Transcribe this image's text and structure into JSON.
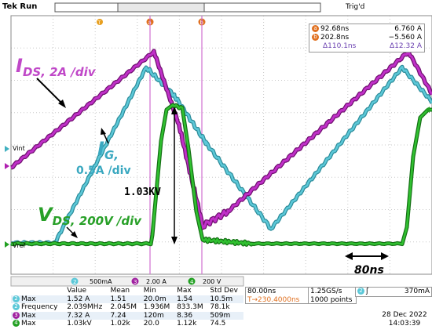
{
  "header": {
    "app_title": "Tek Run",
    "trigger_status": "Trig'd"
  },
  "cursors": {
    "a": {
      "label": "a",
      "time": "92.68ns",
      "value": "6.760 A"
    },
    "b": {
      "label": "b",
      "time": "202.8ns",
      "value": "−5.560 A"
    },
    "delta_time": "Δ110.1ns",
    "delta_value": "Δ12.32 A"
  },
  "annotations": {
    "ids_main": "I",
    "ids_sub": "DS, 2A /div",
    "ig_main": "I",
    "ig_sub": "G,",
    "ig_scale": "0.5A /div",
    "vds_main": "V",
    "vds_sub": "DS, 200V /div",
    "voltage_peak": "1.03KV",
    "time_span": "80ns",
    "vint": "Vint",
    "vref": "Vref"
  },
  "channels": {
    "ch2": {
      "num": "2",
      "scale": "500mA",
      "color": "#5cc8d8"
    },
    "ch3": {
      "num": "3",
      "scale": "2.00 A",
      "color": "#a020a0"
    },
    "ch4": {
      "num": "4",
      "scale": "200 V",
      "color": "#22a022"
    }
  },
  "timebase": {
    "scale": "80.00ns",
    "offset": "T→230.4000ns",
    "sample_rate": "1.25GS/s",
    "record_length": "1000 points"
  },
  "trigger": {
    "channel": "2",
    "slope": "ʃ",
    "level": "370mA"
  },
  "measurements": {
    "headers": [
      "",
      "Value",
      "Mean",
      "Min",
      "Max",
      "Std Dev"
    ],
    "rows": [
      {
        "ch": "2",
        "name": "Max",
        "value": "1.52 A",
        "mean": "1.51",
        "min": "20.0m",
        "max": "1.54",
        "std": "10.5m"
      },
      {
        "ch": "2",
        "name": "Frequency",
        "value": "2.039MHz",
        "mean": "2.045M",
        "min": "1.936M",
        "max": "833.3M",
        "std": "78.1k"
      },
      {
        "ch": "3",
        "name": "Max",
        "value": "7.32 A",
        "mean": "7.24",
        "min": "120m",
        "max": "8.36",
        "std": "509m"
      },
      {
        "ch": "4",
        "name": "Max",
        "value": "1.03kV",
        "mean": "1.02k",
        "min": "20.0",
        "max": "1.12k",
        "std": "74.5"
      }
    ]
  },
  "datetime": {
    "date": "28 Dec 2022",
    "time": "14:03:39"
  },
  "colors": {
    "grid_bg": "#ffffff",
    "grid_line": "#c8c8c8",
    "ids": "#b020b0",
    "ig": "#40b0c0",
    "vds": "#22a022",
    "cursor": "#d060d0",
    "orange": "#e07020",
    "arrow": "#000000"
  }
}
